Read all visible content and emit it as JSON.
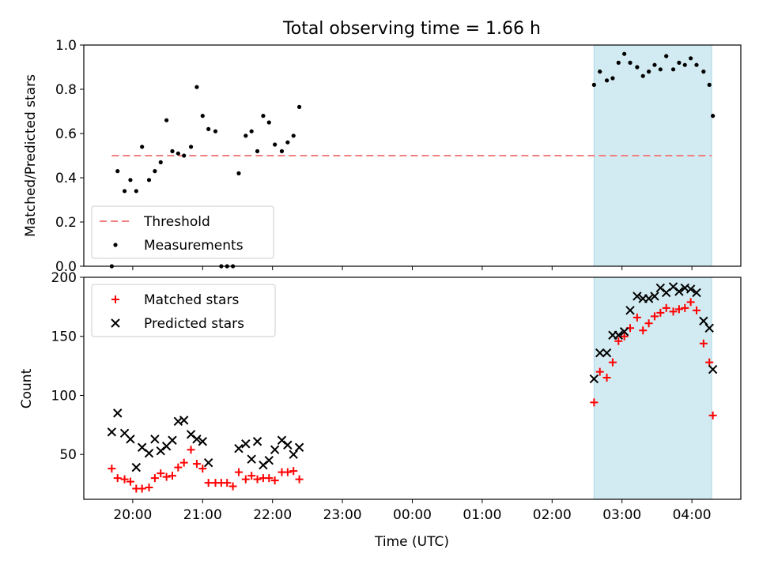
{
  "figure": {
    "title": "Total observing time = 1.66 h",
    "xlabel": "Time (UTC)",
    "x_ticks": [
      "20:00",
      "21:00",
      "22:00",
      "23:00",
      "00:00",
      "01:00",
      "02:00",
      "03:00",
      "04:00"
    ],
    "highlight_color": "#add8e6"
  },
  "chart_data": [
    {
      "type": "scatter",
      "title": "Total observing time = 1.66 h",
      "xlabel": "",
      "ylabel": "Matched/Predicted stars",
      "xlim": [
        "19:18",
        "04:42"
      ],
      "ylim": [
        0,
        1.0
      ],
      "y_ticks": [
        "0.0",
        "0.2",
        "0.4",
        "0.6",
        "0.8",
        "1.0"
      ],
      "highlight_region": {
        "x_start": "02:36",
        "x_end": "04:17"
      },
      "legend_position": "lower-left",
      "threshold": {
        "name": "Threshold",
        "value": 0.5,
        "x_start": "19:42",
        "x_end": "04:17",
        "color": "#f08080",
        "style": "dashed"
      },
      "series": [
        {
          "name": "Measurements",
          "color": "#000000",
          "marker": "dot",
          "x": [
            "19:42",
            "19:47",
            "19:53",
            "19:58",
            "20:03",
            "20:08",
            "20:14",
            "20:19",
            "20:24",
            "20:29",
            "20:34",
            "20:39",
            "20:44",
            "20:50",
            "20:55",
            "21:00",
            "21:05",
            "21:11",
            "21:16",
            "21:21",
            "21:26",
            "21:31",
            "21:37",
            "21:42",
            "21:47",
            "21:52",
            "21:57",
            "22:02",
            "22:08",
            "22:13",
            "22:18",
            "22:23",
            "02:36",
            "02:41",
            "02:47",
            "02:52",
            "02:57",
            "03:02",
            "03:07",
            "03:13",
            "03:18",
            "03:23",
            "03:28",
            "03:33",
            "03:38",
            "03:44",
            "03:49",
            "03:54",
            "03:59",
            "04:04",
            "04:10",
            "04:15"
          ],
          "y": [
            0.0,
            0.43,
            0.34,
            0.39,
            0.34,
            0.54,
            0.39,
            0.43,
            0.47,
            0.66,
            0.52,
            0.51,
            0.5,
            0.54,
            0.81,
            0.68,
            0.62,
            0.61,
            0.0,
            0.0,
            0.0,
            0.42,
            0.59,
            0.61,
            0.52,
            0.68,
            0.65,
            0.55,
            0.52,
            0.56,
            0.59,
            0.72,
            0.82,
            0.88,
            0.84,
            0.85,
            0.92,
            0.96,
            0.92,
            0.9,
            0.86,
            0.88,
            0.91,
            0.89,
            0.95,
            0.89,
            0.92,
            0.91,
            0.94,
            0.91,
            0.88,
            0.82
          ]
        }
      ],
      "extra_points": {
        "x": [
          "04:18"
        ],
        "y": [
          0.68
        ]
      }
    },
    {
      "type": "scatter",
      "xlabel": "Time (UTC)",
      "ylabel": "Count",
      "xlim": [
        "19:18",
        "04:42"
      ],
      "ylim": [
        12,
        200
      ],
      "y_ticks": [
        "50",
        "100",
        "150",
        "200"
      ],
      "highlight_region": {
        "x_start": "02:36",
        "x_end": "04:17"
      },
      "legend_position": "upper-left",
      "series": [
        {
          "name": "Matched stars",
          "color": "#ff0000",
          "marker": "plus",
          "x": [
            "19:42",
            "19:47",
            "19:53",
            "19:58",
            "20:03",
            "20:08",
            "20:14",
            "20:19",
            "20:24",
            "20:29",
            "20:34",
            "20:39",
            "20:44",
            "20:50",
            "20:55",
            "21:00",
            "21:05",
            "21:11",
            "21:16",
            "21:21",
            "21:26",
            "21:31",
            "21:37",
            "21:42",
            "21:47",
            "21:52",
            "21:57",
            "22:02",
            "22:08",
            "22:13",
            "22:18",
            "22:23",
            "02:36",
            "02:41",
            "02:47",
            "02:52",
            "02:57",
            "03:02",
            "03:07",
            "03:13",
            "03:18",
            "03:23",
            "03:28",
            "03:33",
            "03:38",
            "03:44",
            "03:49",
            "03:54",
            "03:59",
            "04:04",
            "04:10",
            "04:15",
            "04:18"
          ],
          "y": [
            38,
            30,
            29,
            27,
            21,
            21,
            22,
            30,
            34,
            31,
            32,
            39,
            43,
            54,
            42,
            38,
            26,
            26,
            26,
            26,
            23,
            35,
            29,
            32,
            29,
            30,
            30,
            28,
            35,
            35,
            36,
            29,
            94,
            120,
            115,
            128,
            146,
            150,
            157,
            166,
            155,
            161,
            167,
            170,
            174,
            171,
            173,
            174,
            179,
            172,
            144,
            128,
            83
          ]
        },
        {
          "name": "Predicted stars",
          "color": "#000000",
          "marker": "x",
          "x": [
            "19:42",
            "19:47",
            "19:53",
            "19:58",
            "20:03",
            "20:08",
            "20:14",
            "20:19",
            "20:24",
            "20:29",
            "20:34",
            "20:39",
            "20:44",
            "20:50",
            "20:55",
            "21:00",
            "21:05",
            "21:11",
            "21:16",
            "21:21",
            "21:26",
            "21:31",
            "21:37",
            "21:42",
            "21:47",
            "21:52",
            "21:57",
            "22:02",
            "22:08",
            "22:13",
            "22:18",
            "22:23",
            "02:36",
            "02:41",
            "02:47",
            "02:52",
            "02:57",
            "03:02",
            "03:07",
            "03:13",
            "03:18",
            "03:23",
            "03:28",
            "03:33",
            "03:38",
            "03:44",
            "03:49",
            "03:54",
            "03:59",
            "04:04",
            "04:10",
            "04:15",
            "04:18"
          ],
          "y": [
            69,
            85,
            68,
            63,
            39,
            56,
            51,
            63,
            53,
            57,
            62,
            78,
            79,
            67,
            63,
            61,
            43,
            null,
            null,
            null,
            null,
            55,
            59,
            46,
            61,
            41,
            45,
            54,
            62,
            58,
            50,
            56,
            114,
            136,
            136,
            151,
            151,
            154,
            172,
            184,
            182,
            182,
            184,
            191,
            187,
            192,
            188,
            191,
            190,
            187,
            163,
            157,
            122
          ]
        }
      ]
    }
  ]
}
